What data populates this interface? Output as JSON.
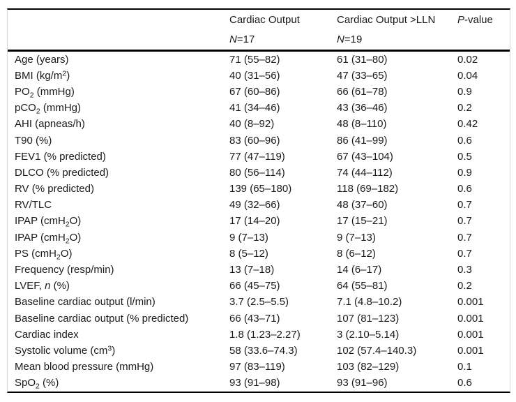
{
  "table": {
    "columns": [
      {
        "title": [],
        "subtitle": []
      },
      {
        "title": [
          {
            "t": "Cardiac Output"
          }
        ],
        "subtitle": [
          {
            "t": "N",
            "i": true
          },
          {
            "t": "=17"
          }
        ]
      },
      {
        "title": [
          {
            "t": "Cardiac Output >LLN"
          }
        ],
        "subtitle": [
          {
            "t": "N",
            "i": true
          },
          {
            "t": "=19"
          }
        ]
      },
      {
        "title": [
          {
            "t": "P",
            "i": true
          },
          {
            "t": "-value"
          }
        ],
        "subtitle": []
      }
    ],
    "rows": [
      {
        "label": [
          {
            "t": "Age (years)"
          }
        ],
        "group1": "71 (55–82)",
        "group2": "61 (31–80)",
        "p": "0.02"
      },
      {
        "label": [
          {
            "t": "BMI (kg/m"
          },
          {
            "t": "2",
            "sup": true
          },
          {
            "t": ")"
          }
        ],
        "group1": "40 (31–56)",
        "group2": "47 (33–65)",
        "p": "0.04"
      },
      {
        "label": [
          {
            "t": "PO"
          },
          {
            "t": "2",
            "sub": true
          },
          {
            "t": " (mmHg)"
          }
        ],
        "group1": "67 (60–86)",
        "group2": "66 (61–78)",
        "p": "0.9"
      },
      {
        "label": [
          {
            "t": "pCO"
          },
          {
            "t": "2",
            "sub": true
          },
          {
            "t": " (mmHg)"
          }
        ],
        "group1": "41 (34–46)",
        "group2": "43 (36–46)",
        "p": "0.2"
      },
      {
        "label": [
          {
            "t": "AHI (apneas/h)"
          }
        ],
        "group1": "40 (8–92)",
        "group2": "48 (8–110)",
        "p": "0.42"
      },
      {
        "label": [
          {
            "t": "T90 (%)"
          }
        ],
        "group1": "83 (60–96)",
        "group2": "86 (41–99)",
        "p": "0.6"
      },
      {
        "label": [
          {
            "t": "FEV1 (% predicted)"
          }
        ],
        "group1": "77 (47–119)",
        "group2": "67 (43–104)",
        "p": "0.5"
      },
      {
        "label": [
          {
            "t": "DLCO (% predicted)"
          }
        ],
        "group1": "80 (56–114)",
        "group2": "74 (44–112)",
        "p": "0.9"
      },
      {
        "label": [
          {
            "t": "RV (% predicted)"
          }
        ],
        "group1": "139 (65–180)",
        "group2": "118 (69–182)",
        "p": "0.6"
      },
      {
        "label": [
          {
            "t": "RV/TLC"
          }
        ],
        "group1": "49 (32–66)",
        "group2": "48 (37–60)",
        "p": "0.7"
      },
      {
        "label": [
          {
            "t": "IPAP (cmH"
          },
          {
            "t": "2",
            "sub": true
          },
          {
            "t": "O)"
          }
        ],
        "group1": "17 (14–20)",
        "group2": "17 (15–21)",
        "p": "0.7"
      },
      {
        "label": [
          {
            "t": "IPAP (cmH"
          },
          {
            "t": "2",
            "sub": true
          },
          {
            "t": "O)"
          }
        ],
        "group1": "9 (7–13)",
        "group2": "9 (7–13)",
        "p": "0.7"
      },
      {
        "label": [
          {
            "t": "PS (cmH"
          },
          {
            "t": "2",
            "sub": true
          },
          {
            "t": "O)"
          }
        ],
        "group1": "8 (5–12)",
        "group2": "8 (6–12)",
        "p": "0.7"
      },
      {
        "label": [
          {
            "t": "Frequency (resp/min)"
          }
        ],
        "group1": "13 (7–18)",
        "group2": "14 (6–17)",
        "p": "0.3"
      },
      {
        "label": [
          {
            "t": "LVEF, "
          },
          {
            "t": "n",
            "i": true
          },
          {
            "t": " (%)"
          }
        ],
        "group1": "66 (45–75)",
        "group2": "64 (55–81)",
        "p": "0.2"
      },
      {
        "label": [
          {
            "t": "Baseline cardiac output (l/min)"
          }
        ],
        "group1": "3.7 (2.5–5.5)",
        "group2": "7.1 (4.8–10.2)",
        "p": "0.001"
      },
      {
        "label": [
          {
            "t": "Baseline cardiac output (% predicted)"
          }
        ],
        "group1": "66 (43–71)",
        "group2": "107 (81–123)",
        "p": "0.001"
      },
      {
        "label": [
          {
            "t": "Cardiac index"
          }
        ],
        "group1": "1.8 (1.23–2.27)",
        "group2": "3 (2.10–5.14)",
        "p": "0.001"
      },
      {
        "label": [
          {
            "t": "Systolic volume (cm"
          },
          {
            "t": "3",
            "sup": true
          },
          {
            "t": ")"
          }
        ],
        "group1": "58 (33.6–74.3)",
        "group2": "102 (57.4–140.3)",
        "p": "0.001"
      },
      {
        "label": [
          {
            "t": "Mean blood pressure (mmHg)"
          }
        ],
        "group1": "97 (83–119)",
        "group2": "103 (82–129)",
        "p": "0.1"
      },
      {
        "label": [
          {
            "t": "SpO"
          },
          {
            "t": "2",
            "sub": true
          },
          {
            "t": " (%)"
          }
        ],
        "group1": "93 (91–98)",
        "group2": "93 (91–96)",
        "p": "0.6"
      }
    ]
  }
}
